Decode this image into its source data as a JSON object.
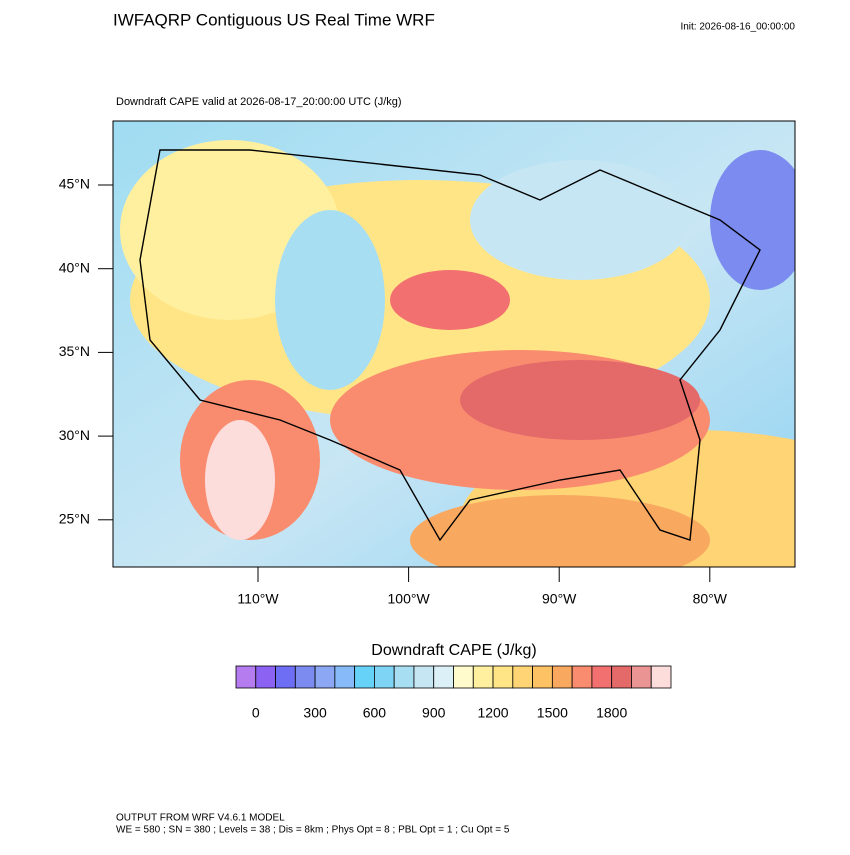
{
  "header": {
    "title": "IWFAQRP Contiguous US Real Time WRF",
    "init": "Init: 2026-08-16_00:00:00"
  },
  "map": {
    "subtitle": "Downdraft CAPE valid at 2026-08-17_20:00:00 UTC   (J/kg)",
    "lat_labels": [
      "45°N",
      "40°N",
      "35°N",
      "30°N",
      "25°N"
    ],
    "lon_labels": [
      "110°W",
      "100°W",
      "90°W",
      "80°W"
    ]
  },
  "colorbar": {
    "title": "Downdraft CAPE  (J/kg)",
    "colors": [
      "#b57cf0",
      "#8c62f2",
      "#6e6ef5",
      "#7b8bf0",
      "#8ca8f5",
      "#86baf8",
      "#66d2f7",
      "#7ed4f4",
      "#a8def2",
      "#c6e6f4",
      "#dcf0f7",
      "#fffbcc",
      "#fff0a0",
      "#ffe585",
      "#ffd474",
      "#fcc264",
      "#f9a860",
      "#f98c6e",
      "#f27070",
      "#e46a6a",
      "#ea9494",
      "#fddcdc"
    ],
    "ticks": [
      0,
      300,
      600,
      900,
      1200,
      1500,
      1800
    ]
  },
  "footer": {
    "line1": "OUTPUT FROM WRF V4.6.1 MODEL",
    "line2": "WE = 580 ; SN = 380 ; Levels = 38 ; Dis = 8km ; Phys Opt = 8 ; PBL Opt = 1 ; Cu Opt = 5"
  }
}
